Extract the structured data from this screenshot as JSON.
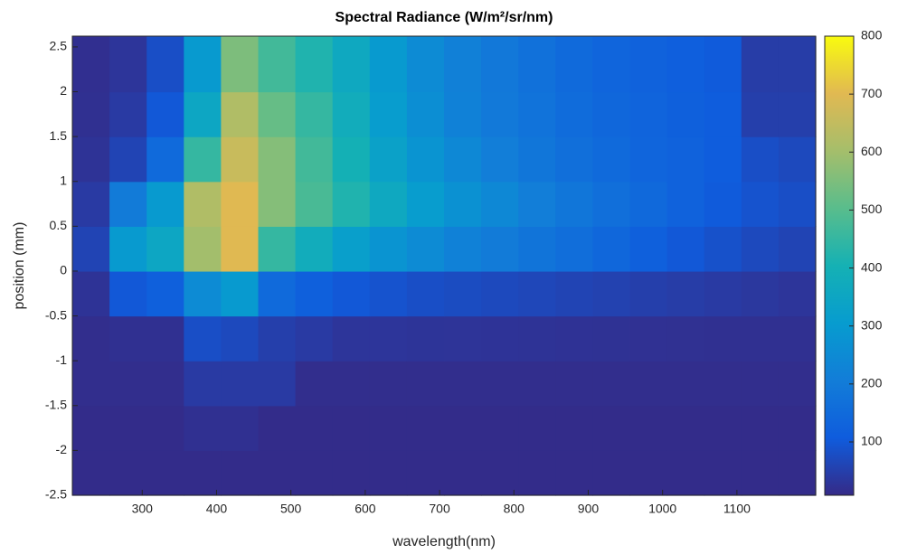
{
  "chart_data": {
    "type": "heatmap",
    "title": "Spectral Radiance (W/m²/sr/nm)",
    "x_label": "wavelength(nm)",
    "y_label": "position (mm)",
    "xbins": [
      206,
      256,
      306,
      356,
      406,
      456,
      506,
      556,
      606,
      656,
      706,
      756,
      806,
      856,
      906,
      956,
      1006,
      1056,
      1106,
      1156,
      1206
    ],
    "ybins": [
      -2.5,
      -2,
      -1.5,
      -1,
      -0.5,
      0,
      0.5,
      1,
      1.5,
      2,
      2.62
    ],
    "z": [
      [
        12,
        12,
        12,
        12,
        12,
        12,
        12,
        12,
        12,
        12,
        12,
        12,
        12,
        12,
        12,
        12,
        12,
        12,
        12,
        12
      ],
      [
        12,
        12,
        12,
        20,
        20,
        12,
        12,
        12,
        12,
        12,
        12,
        12,
        12,
        12,
        12,
        12,
        12,
        12,
        12,
        12
      ],
      [
        15,
        15,
        15,
        40,
        40,
        40,
        15,
        15,
        15,
        15,
        15,
        15,
        15,
        15,
        15,
        15,
        15,
        15,
        15,
        15
      ],
      [
        15,
        20,
        20,
        80,
        70,
        50,
        40,
        30,
        30,
        28,
        27,
        26,
        25,
        24,
        23,
        22,
        21,
        20,
        20,
        20
      ],
      [
        25,
        100,
        120,
        250,
        300,
        150,
        120,
        100,
        90,
        80,
        75,
        70,
        65,
        60,
        55,
        50,
        45,
        40,
        35,
        30
      ],
      [
        60,
        300,
        350,
        600,
        700,
        450,
        380,
        320,
        280,
        250,
        220,
        200,
        180,
        160,
        140,
        120,
        100,
        85,
        70,
        60
      ],
      [
        40,
        200,
        300,
        620,
        700,
        560,
        480,
        420,
        360,
        310,
        270,
        240,
        210,
        185,
        165,
        145,
        125,
        105,
        90,
        80
      ],
      [
        25,
        60,
        150,
        450,
        660,
        560,
        470,
        400,
        330,
        280,
        240,
        210,
        185,
        165,
        150,
        135,
        125,
        110,
        80,
        70
      ],
      [
        20,
        40,
        100,
        350,
        620,
        520,
        450,
        380,
        310,
        260,
        220,
        195,
        175,
        155,
        140,
        130,
        120,
        110,
        50,
        50
      ],
      [
        18,
        30,
        80,
        300,
        550,
        470,
        420,
        360,
        300,
        250,
        215,
        190,
        170,
        150,
        135,
        125,
        115,
        105,
        45,
        45
      ]
    ],
    "xlim": [
      206,
      1206
    ],
    "ylim": [
      -2.5,
      2.62
    ],
    "xticks": [
      300,
      400,
      500,
      600,
      700,
      800,
      900,
      1000,
      1100
    ],
    "yticks": [
      -2.5,
      -2,
      -1.5,
      -1,
      -0.5,
      0,
      0.5,
      1,
      1.5,
      2,
      2.5
    ],
    "clim": [
      8,
      800
    ],
    "cticks": [
      100,
      200,
      300,
      400,
      500,
      600,
      700,
      800
    ],
    "colormap": "parula"
  }
}
